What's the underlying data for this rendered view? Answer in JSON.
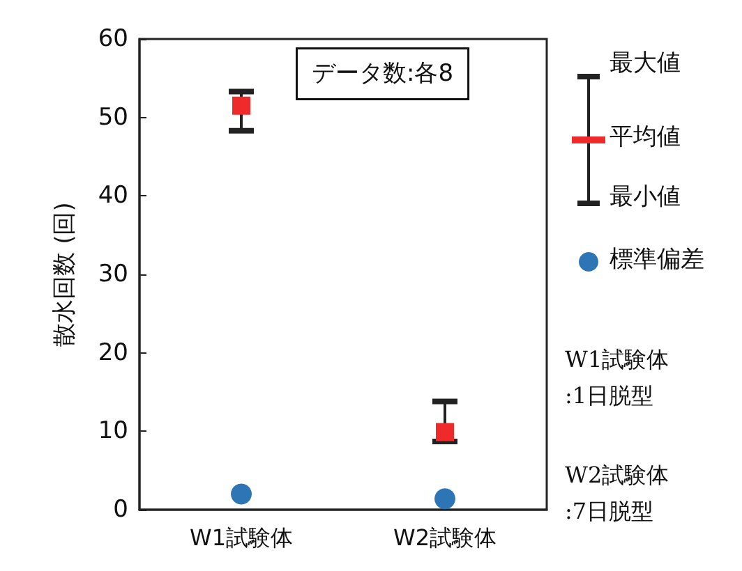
{
  "chart_data": {
    "type": "scatter",
    "ylabel": "散水回数 (回)",
    "categories": [
      "W1試験体",
      "W2試験体"
    ],
    "series": [
      {
        "name": "平均値",
        "color": "#ee2a2a",
        "marker": "square",
        "values": [
          51.5,
          9.9
        ],
        "errors": [
          [
            48.3,
            53.3
          ],
          [
            8.7,
            13.8
          ]
        ]
      },
      {
        "name": "標準偏差",
        "color": "#2e75b6",
        "marker": "circle",
        "values": [
          2,
          1.4
        ]
      }
    ],
    "ylim": [
      0,
      60
    ],
    "yticks": [
      0,
      10,
      20,
      30,
      40,
      50,
      60
    ],
    "grid": false,
    "legend": "right",
    "annotations": [
      "データ数:各8",
      "最大値",
      "最小値",
      "W1試験体\n:1日脱型",
      "W2試験体\n:7日脱型"
    ]
  }
}
